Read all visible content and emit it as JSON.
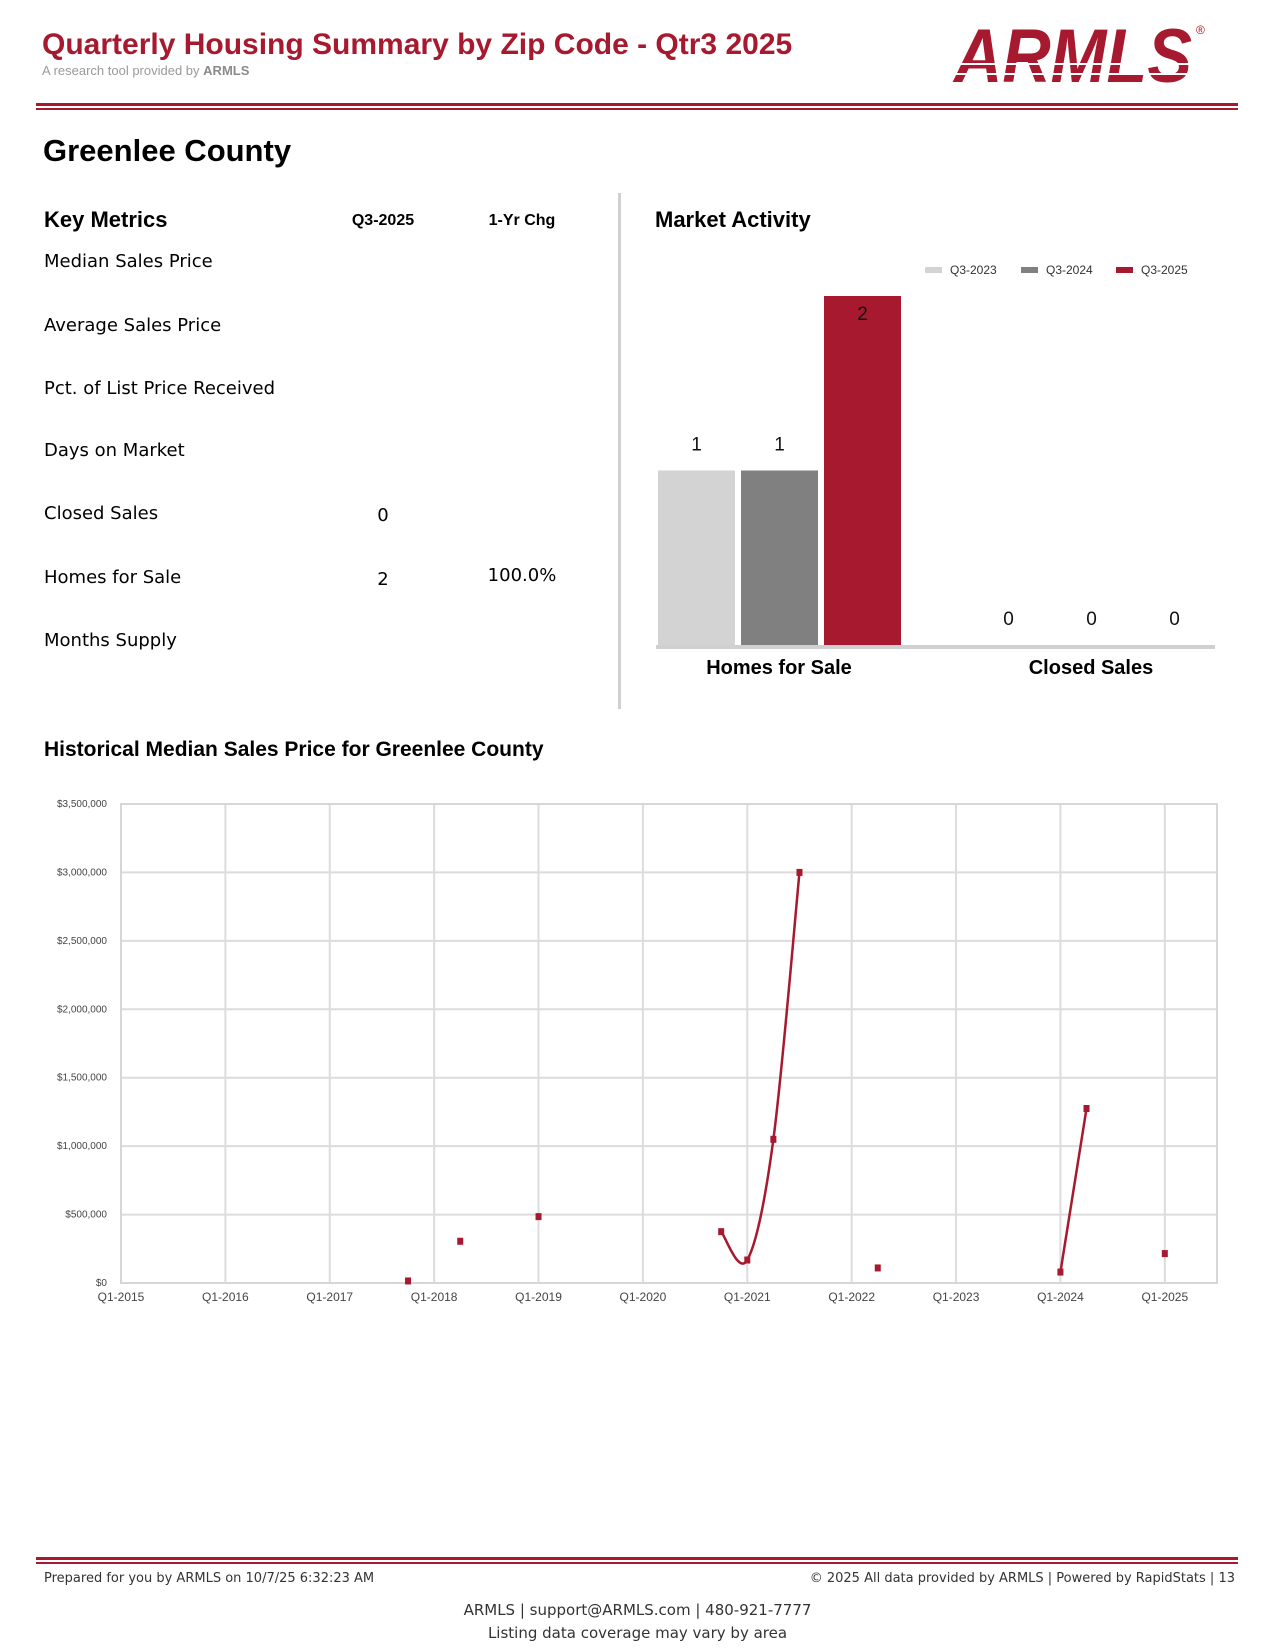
{
  "header": {
    "title": "Quarterly Housing Summary by Zip Code - Qtr3 2025",
    "subtitle_prefix": "A research tool provided by",
    "subtitle_brand": "ARMLS",
    "logo_text": "ARMLS",
    "logo_mark": "®",
    "brand_color": "#a6192e"
  },
  "county": "Greenlee County",
  "key_metrics": {
    "title": "Key Metrics",
    "col_current": "Q3-2025",
    "col_change": "1-Yr Chg",
    "rows": [
      {
        "label": "Median Sales Price",
        "current": "",
        "change": ""
      },
      {
        "label": "Average Sales Price",
        "current": "",
        "change": ""
      },
      {
        "label": "Pct. of List Price Received",
        "current": "",
        "change": ""
      },
      {
        "label": "Days on Market",
        "current": "",
        "change": ""
      },
      {
        "label": "Closed Sales",
        "current": "0",
        "change": ""
      },
      {
        "label": "Homes for Sale",
        "current": "2",
        "change": "100.0%"
      },
      {
        "label": "Months Supply",
        "current": "",
        "change": ""
      }
    ]
  },
  "chart_data": [
    {
      "type": "bar",
      "title": "Market Activity",
      "categories": [
        "Homes for Sale",
        "Closed Sales"
      ],
      "series": [
        {
          "name": "Q3-2023",
          "color": "#d3d3d3",
          "values": [
            1,
            0
          ]
        },
        {
          "name": "Q3-2024",
          "color": "#808080",
          "values": [
            1,
            0
          ]
        },
        {
          "name": "Q3-2025",
          "color": "#a6192e",
          "values": [
            2,
            0
          ]
        }
      ],
      "legend": "top-right",
      "ylim": [
        0,
        2
      ]
    },
    {
      "type": "line",
      "title": "Historical Median Sales Price for Greenlee County",
      "x_ticks": [
        "Q1-2015",
        "Q1-2016",
        "Q1-2017",
        "Q1-2018",
        "Q1-2019",
        "Q1-2020",
        "Q1-2021",
        "Q1-2022",
        "Q1-2023",
        "Q1-2024",
        "Q1-2025"
      ],
      "y_ticks": [
        "$0",
        "$500,000",
        "$1,000,000",
        "$1,500,000",
        "$2,000,000",
        "$2,500,000",
        "$3,000,000",
        "$3,500,000"
      ],
      "ylim": [
        0,
        3500000
      ],
      "x_range_quarters": [
        "Q1-2015",
        "Q3-2025"
      ],
      "grid": true,
      "color": "#a6192e",
      "points": [
        {
          "x": "Q4-2017",
          "q": 11,
          "y": 15000
        },
        {
          "x": "Q2-2018",
          "q": 13,
          "y": 305000
        },
        {
          "x": "Q1-2019",
          "q": 16,
          "y": 485000
        },
        {
          "x": "Q4-2020",
          "q": 23,
          "y": 375000
        },
        {
          "x": "Q1-2021",
          "q": 24,
          "y": 168000
        },
        {
          "x": "Q2-2021",
          "q": 25,
          "y": 1050000
        },
        {
          "x": "Q3-2021",
          "q": 26,
          "y": 3000000
        },
        {
          "x": "Q2-2022",
          "q": 29,
          "y": 110000
        },
        {
          "x": "Q1-2024",
          "q": 36,
          "y": 80000
        },
        {
          "x": "Q2-2024",
          "q": 37,
          "y": 1275000
        },
        {
          "x": "Q1-2025",
          "q": 40,
          "y": 215000
        }
      ]
    }
  ],
  "footer": {
    "prepared": "Prepared for you by ARMLS on 10/7/25 6:32:23 AM",
    "copyright": "© 2025 All data provided by ARMLS | Powered by RapidStats  | 13",
    "contact": "ARMLS | support@ARMLS.com | 480-921-7777",
    "coverage": "Listing data coverage may vary by area"
  }
}
